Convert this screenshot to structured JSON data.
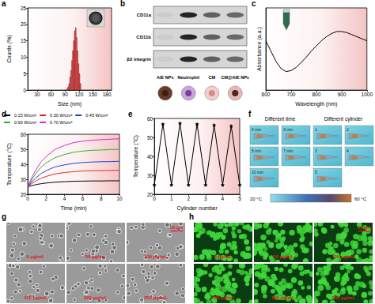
{
  "chart_data": [
    {
      "panel": "a",
      "type": "histogram",
      "x_label": "Size (nm)",
      "y_label": "Counts (%)",
      "bins": [
        94,
        96,
        98,
        100,
        102,
        104,
        106,
        108,
        110,
        112,
        114,
        116,
        118,
        120,
        122,
        124
      ],
      "values": [
        0.5,
        1,
        2,
        4,
        6,
        9,
        12,
        15,
        18,
        19,
        16,
        12,
        8,
        5,
        2
      ],
      "color": "#e0504f",
      "xlim": [
        10,
        190
      ],
      "xticks": [
        30,
        60,
        90,
        120,
        150,
        180
      ],
      "ylim": [
        0,
        25
      ],
      "yticks": [
        0,
        5,
        10,
        15,
        20,
        25
      ],
      "grid": false
    },
    {
      "panel": "c",
      "type": "line",
      "x_label": "Wavelength (nm)",
      "y_label": "Absorbance (a.u.)",
      "x": [
        600,
        620,
        640,
        660,
        680,
        700,
        720,
        740,
        760,
        780,
        800,
        820,
        840,
        860,
        880,
        900,
        920,
        940,
        960,
        980,
        1000
      ],
      "values": [
        0.24,
        0.19,
        0.14,
        0.105,
        0.09,
        0.095,
        0.11,
        0.135,
        0.16,
        0.19,
        0.215,
        0.24,
        0.26,
        0.275,
        0.285,
        0.285,
        0.28,
        0.27,
        0.26,
        0.25,
        0.24
      ],
      "color": "#000000",
      "xlim": [
        600,
        1000
      ],
      "xticks": [
        600,
        700,
        800,
        900,
        1000
      ],
      "ylim": [
        0,
        0.4
      ],
      "grid": false,
      "tick_labels": "x"
    },
    {
      "panel": "d",
      "type": "line",
      "x_label": "Time (min)",
      "y_label": "Temperature (°C)",
      "x": [
        0,
        0.5,
        1,
        1.5,
        2,
        2.5,
        3,
        4,
        5,
        6,
        7,
        8,
        9,
        10
      ],
      "series": [
        {
          "name": "0.15 W/cm²",
          "color": "#000000",
          "values": [
            25,
            25.9,
            26.6,
            27.1,
            27.5,
            27.8,
            28.1,
            28.4,
            28.7,
            28.8,
            28.9,
            28.9,
            29,
            29
          ]
        },
        {
          "name": "0.30 W/cm²",
          "color": "#e8262a",
          "values": [
            25,
            27.4,
            29.3,
            30.8,
            31.9,
            32.8,
            33.6,
            34.5,
            35.1,
            35.5,
            35.7,
            35.8,
            35.9,
            36
          ]
        },
        {
          "name": "0.45 W/cm²",
          "color": "#2a3fd6",
          "values": [
            25,
            28.7,
            31.6,
            34,
            35.7,
            37.1,
            38.3,
            39.6,
            40.6,
            41.2,
            41.5,
            41.7,
            41.8,
            42
          ]
        },
        {
          "name": "0.60 W/cm²",
          "color": "#2bb52b",
          "values": [
            25,
            30.5,
            34.8,
            38.3,
            40.8,
            42.8,
            44.5,
            46.5,
            48,
            48.8,
            49.3,
            49.5,
            49.8,
            50
          ]
        },
        {
          "name": "0.70 W/cm²",
          "color": "#d62ad6",
          "values": [
            25,
            32,
            37.5,
            42,
            45.2,
            47.7,
            50,
            52.5,
            54.4,
            55.4,
            56,
            56.4,
            56.7,
            57
          ]
        }
      ],
      "xlim": [
        0,
        10
      ],
      "xticks": [
        0,
        2,
        4,
        6,
        8,
        10
      ],
      "ylim": [
        20,
        60
      ],
      "yticks": [
        20,
        30,
        40,
        50,
        60
      ],
      "grid": false,
      "legend": "top-left"
    },
    {
      "panel": "e",
      "type": "line",
      "x_label": "Cylinder number",
      "y_label": "Temperature (°C)",
      "x": [
        0,
        0.5,
        1,
        1.5,
        2,
        2.5,
        3,
        3.5,
        4,
        4.5,
        5
      ],
      "values": [
        25,
        57,
        25,
        57.5,
        25,
        57,
        25,
        56.5,
        25,
        56,
        25
      ],
      "color": "#000000",
      "marker": "star",
      "xlim": [
        0,
        5
      ],
      "xticks": [
        0,
        1,
        2,
        3,
        4,
        5
      ],
      "ylim": [
        20,
        60
      ],
      "yticks": [
        20,
        30,
        40,
        50,
        60
      ],
      "grid": false
    }
  ],
  "blot": {
    "panel": "b",
    "rows": [
      "CD11a",
      "CD11b",
      "β2 integrin"
    ],
    "columns": [
      "AIE NPs",
      "Neutrophil",
      "CM",
      "CM@AIE NPs"
    ]
  },
  "thermal": {
    "panel": "f",
    "groups": [
      {
        "title": "Different time",
        "tiles": [
          "0 min",
          "3 min",
          "5 min",
          "7 min",
          "10 min"
        ]
      },
      {
        "title": "Different cylinder",
        "tiles": [
          "1",
          "2",
          "3",
          "4",
          "5"
        ]
      }
    ],
    "colorbar": [
      "20 °C",
      "60 °C"
    ]
  },
  "micrographs": [
    {
      "panel": "g",
      "labels": [
        "0 μg/mL",
        "50 μg/mL",
        "100 μg/mL",
        "150 μg/mL",
        "200 μg/mL",
        "250 μg/mL"
      ],
      "scale_bar": "20 μm"
    },
    {
      "panel": "h",
      "labels": [
        "0 μg/mL",
        "50 μg/mL",
        "100 μg/mL",
        "150 μg/mL",
        "200 μg/mL",
        "250 μg/mL"
      ],
      "scale_bar": "20 μm"
    }
  ]
}
